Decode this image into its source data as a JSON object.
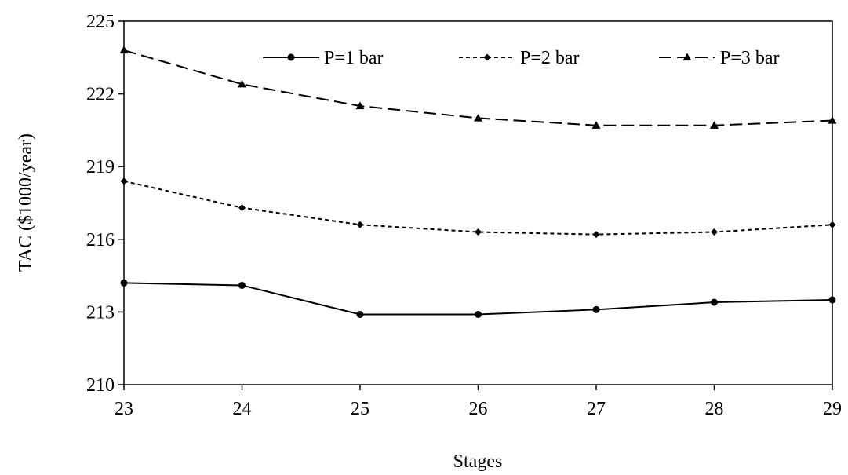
{
  "chart_data": {
    "type": "line",
    "title": "",
    "xlabel": "Stages",
    "ylabel": "TAC ($1000/year)",
    "x": [
      23,
      24,
      25,
      26,
      27,
      28,
      29
    ],
    "xlim": [
      23,
      29
    ],
    "ylim": [
      210,
      225
    ],
    "yticks": [
      210,
      213,
      216,
      219,
      222,
      225
    ],
    "grid": false,
    "legend_position": "top",
    "series": [
      {
        "name": "P=1 bar",
        "values": [
          214.2,
          214.1,
          212.9,
          212.9,
          213.1,
          213.4,
          213.5
        ],
        "dash": "solid",
        "marker": "circle"
      },
      {
        "name": "P=2 bar",
        "values": [
          218.4,
          217.3,
          216.6,
          216.3,
          216.2,
          216.3,
          216.6
        ],
        "dash": "short-dash",
        "marker": "diamond"
      },
      {
        "name": "P=3 bar",
        "values": [
          223.8,
          222.4,
          221.5,
          221.0,
          220.7,
          220.7,
          220.9
        ],
        "dash": "long-dash",
        "marker": "triangle"
      }
    ]
  }
}
